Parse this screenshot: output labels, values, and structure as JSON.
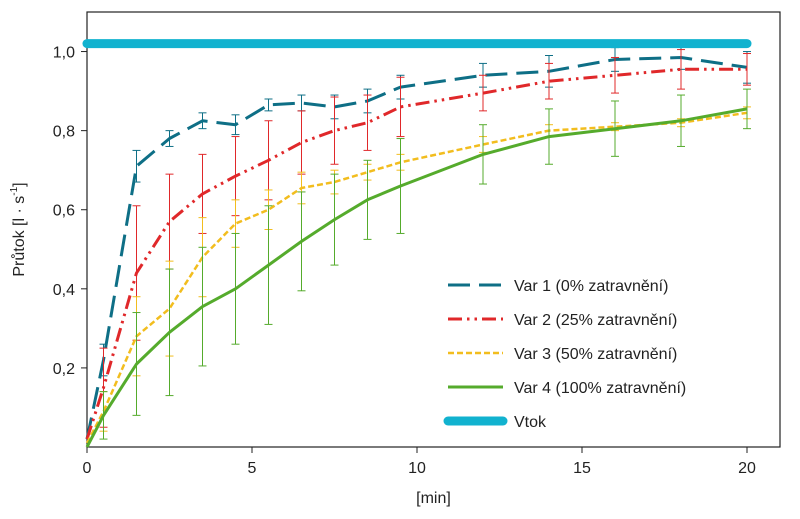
{
  "chart_data": {
    "type": "line",
    "xlabel": "[min]",
    "ylabel_main": "Průtok [l · s",
    "ylabel_sup": "-1",
    "ylabel_close": "]",
    "xlim": [
      0,
      21
    ],
    "ylim": [
      0,
      1.1
    ],
    "x_ticks": [
      0,
      5,
      10,
      15,
      20
    ],
    "x_tick_labels": [
      "0",
      "5",
      "10",
      "15",
      "20"
    ],
    "y_ticks": [
      0.2,
      0.4,
      0.6,
      0.8,
      1.0
    ],
    "y_tick_labels": [
      "0,2",
      "0,4",
      "0,6",
      "0,8",
      "1,0"
    ],
    "grid": false,
    "legend_position": "bottom-right",
    "series": [
      {
        "name": "Var 1 (0% zatravnění)",
        "color": "#0e6f86",
        "style": "longdash",
        "x": [
          0,
          0.5,
          1.5,
          2.5,
          3.5,
          4.5,
          5.5,
          6.5,
          7.5,
          8.5,
          9.5,
          12,
          14,
          16,
          18,
          20
        ],
        "y": [
          0.02,
          0.22,
          0.71,
          0.78,
          0.825,
          0.815,
          0.865,
          0.87,
          0.86,
          0.875,
          0.91,
          0.94,
          0.95,
          0.98,
          0.985,
          0.96
        ],
        "err": [
          0,
          0.04,
          0.04,
          0.02,
          0.02,
          0.025,
          0.015,
          0.02,
          0.03,
          0.03,
          0.03,
          0.03,
          0.04,
          0.03,
          0.03,
          0.04
        ]
      },
      {
        "name": "Var 2 (25% zatravnění)",
        "color": "#e0282a",
        "style": "dashdotdot",
        "x": [
          0,
          0.5,
          1.5,
          2.5,
          3.5,
          4.5,
          5.5,
          6.5,
          7.5,
          8.5,
          9.5,
          12,
          14,
          16,
          18,
          20
        ],
        "y": [
          0.02,
          0.15,
          0.44,
          0.57,
          0.64,
          0.685,
          0.725,
          0.77,
          0.8,
          0.82,
          0.86,
          0.895,
          0.925,
          0.94,
          0.955,
          0.955
        ],
        "err": [
          0,
          0.1,
          0.17,
          0.12,
          0.1,
          0.1,
          0.1,
          0.08,
          0.085,
          0.07,
          0.075,
          0.045,
          0.045,
          0.045,
          0.05,
          0.04
        ]
      },
      {
        "name": "Var 3 (50% zatravnění)",
        "color": "#f2bd1e",
        "style": "shortdash",
        "x": [
          0,
          0.5,
          1.5,
          2.5,
          3.5,
          4.5,
          5.5,
          6.5,
          7.5,
          8.5,
          9.5,
          12,
          14,
          16,
          18,
          20
        ],
        "y": [
          0.01,
          0.09,
          0.28,
          0.35,
          0.48,
          0.565,
          0.6,
          0.655,
          0.67,
          0.695,
          0.72,
          0.765,
          0.8,
          0.81,
          0.82,
          0.845
        ],
        "err": [
          0,
          0.05,
          0.1,
          0.12,
          0.1,
          0.06,
          0.05,
          0.04,
          0.03,
          0.02,
          0.02,
          0.02,
          0.015,
          0.01,
          0.01,
          0.015
        ]
      },
      {
        "name": "Var 4 (100% zatravnění)",
        "color": "#55ab2c",
        "style": "solid",
        "x": [
          0,
          0.5,
          1.5,
          2.5,
          3.5,
          4.5,
          5.5,
          6.5,
          7.5,
          8.5,
          9.5,
          12,
          14,
          16,
          18,
          20
        ],
        "y": [
          0.0,
          0.08,
          0.21,
          0.29,
          0.355,
          0.4,
          0.46,
          0.52,
          0.575,
          0.625,
          0.66,
          0.74,
          0.785,
          0.805,
          0.825,
          0.855
        ],
        "err": [
          0,
          0.06,
          0.13,
          0.16,
          0.15,
          0.14,
          0.15,
          0.125,
          0.115,
          0.1,
          0.12,
          0.075,
          0.07,
          0.07,
          0.065,
          0.05
        ]
      },
      {
        "name": "Vtok",
        "color": "#11b2cf",
        "style": "thick",
        "x": [
          0,
          20
        ],
        "y": [
          1.02,
          1.02
        ],
        "err": [
          0,
          0
        ]
      }
    ]
  }
}
